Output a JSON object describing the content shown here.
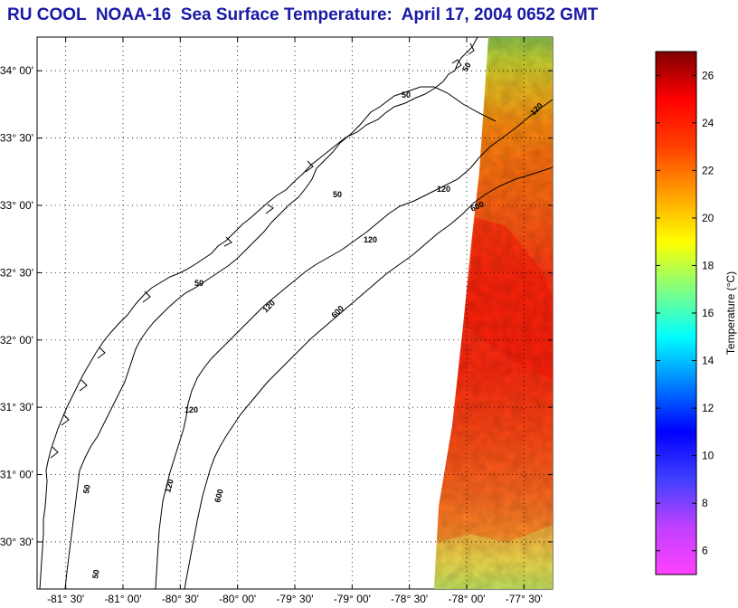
{
  "title": "RU COOL  NOAA-16  Sea Surface Temperature:  April 17, 2004 0652 GMT",
  "map": {
    "lon_range": [
      -81.75,
      -77.25
    ],
    "lat_range": [
      30.15,
      34.25
    ],
    "lon_ticks": [
      {
        "value": -81.5,
        "label": "-81° 30'"
      },
      {
        "value": -81.0,
        "label": "-81° 00'"
      },
      {
        "value": -80.5,
        "label": "-80° 30'"
      },
      {
        "value": -80.0,
        "label": "-80° 00'"
      },
      {
        "value": -79.5,
        "label": "-79° 30'"
      },
      {
        "value": -79.0,
        "label": "-79° 00'"
      },
      {
        "value": -78.5,
        "label": "-78° 30'"
      },
      {
        "value": -78.0,
        "label": "-78° 00'"
      },
      {
        "value": -77.5,
        "label": "-77° 30'"
      }
    ],
    "lat_ticks": [
      {
        "value": 34.0,
        "label": "34° 00'"
      },
      {
        "value": 33.5,
        "label": "33° 30'"
      },
      {
        "value": 33.0,
        "label": "33° 00'"
      },
      {
        "value": 32.5,
        "label": "32° 30'"
      },
      {
        "value": 32.0,
        "label": "32° 00'"
      },
      {
        "value": 31.5,
        "label": "31° 30'"
      },
      {
        "value": 31.0,
        "label": "31° 00'"
      },
      {
        "value": 30.5,
        "label": "30° 30'"
      }
    ],
    "grid": true,
    "contour_labels": [
      "50",
      "50",
      "50",
      "50",
      "50",
      "50",
      "120",
      "120",
      "120",
      "120",
      "120",
      "120",
      "600",
      "600",
      "600"
    ]
  },
  "colorbar": {
    "label": "Temperature (°C)",
    "range": [
      5,
      27
    ],
    "ticks": [
      "6",
      "8",
      "10",
      "12",
      "14",
      "16",
      "18",
      "20",
      "22",
      "24",
      "26"
    ],
    "tick_values": [
      6,
      8,
      10,
      12,
      14,
      16,
      18,
      20,
      22,
      24,
      26
    ],
    "stops": [
      "#ff40ff",
      "#c040ff",
      "#4040ff",
      "#0000ff",
      "#0080ff",
      "#00ffff",
      "#80ff80",
      "#ffff00",
      "#ffa000",
      "#ff4000",
      "#ff0000",
      "#800000"
    ]
  }
}
